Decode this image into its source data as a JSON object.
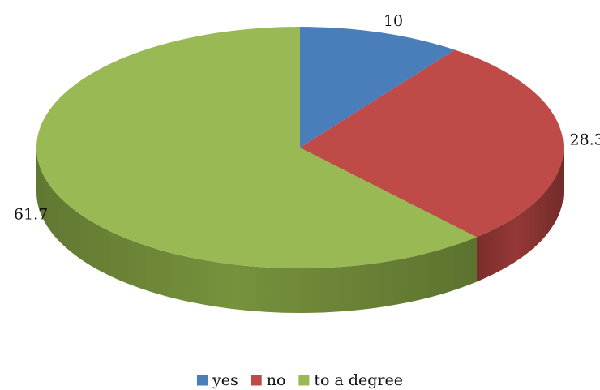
{
  "chart_data": {
    "type": "pie",
    "style": "3d",
    "categories": [
      "yes",
      "no",
      "to a degree"
    ],
    "values": [
      10,
      28.3,
      61.7
    ],
    "colors": [
      "#4a7ebb",
      "#be4b48",
      "#98b954"
    ],
    "side_colors": [
      "#3a649a",
      "#943836",
      "#76923c"
    ],
    "start_angle_deg": 90,
    "direction": "clockwise",
    "data_labels": [
      "10",
      "28.3",
      "61.7"
    ],
    "legend": {
      "position": "bottom",
      "entries": [
        "yes",
        "no",
        "to a degree"
      ]
    }
  }
}
